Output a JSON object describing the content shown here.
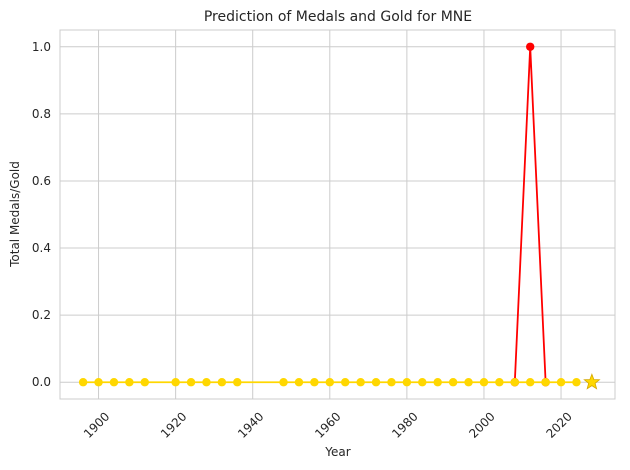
{
  "chart_data": {
    "type": "line",
    "title": "Prediction of Medals and Gold for MNE",
    "xlabel": "Year",
    "ylabel": "Total Medals/Gold",
    "xlim": [
      1890,
      2034
    ],
    "ylim": [
      -0.05,
      1.05
    ],
    "xticks": [
      "1900",
      "1920",
      "1940",
      "1960",
      "1980",
      "2000",
      "2020"
    ],
    "yticks": [
      "0.0",
      "0.2",
      "0.4",
      "0.6",
      "0.8",
      "1.0"
    ],
    "grid": true,
    "series": [
      {
        "color": "#ff0000",
        "marker": "circle",
        "x": [
          2008,
          2012,
          2016
        ],
        "y": [
          0,
          1,
          0
        ]
      },
      {
        "color": "#ffd700",
        "marker": "circle",
        "x": [
          1896,
          1900,
          1904,
          1908,
          1912,
          1920,
          1924,
          1928,
          1932,
          1936,
          1948,
          1952,
          1956,
          1960,
          1964,
          1968,
          1972,
          1976,
          1980,
          1984,
          1988,
          1992,
          1996,
          2000,
          2004,
          2008,
          2012,
          2016,
          2020,
          2024
        ],
        "y": [
          0,
          0,
          0,
          0,
          0,
          0,
          0,
          0,
          0,
          0,
          0,
          0,
          0,
          0,
          0,
          0,
          0,
          0,
          0,
          0,
          0,
          0,
          0,
          0,
          0,
          0,
          0,
          0,
          0,
          0
        ]
      },
      {
        "color": "#ffd700",
        "marker": "star",
        "x": [
          2028
        ],
        "y": [
          0
        ]
      }
    ],
    "colors": {
      "gridline": "#cccccc",
      "axes_edge": "#cccccc",
      "text": "#262626"
    }
  }
}
